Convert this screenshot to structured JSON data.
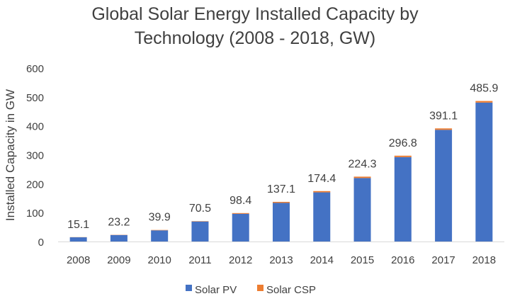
{
  "chart_data": {
    "type": "bar",
    "stacked": true,
    "title_lines": [
      "Global Solar Energy Installed Capacity by",
      "Technology (2008 - 2018, GW)"
    ],
    "xlabel": "",
    "ylabel": "Installed Capacity in GW",
    "ylim": [
      0,
      600
    ],
    "yticks": [
      0,
      100,
      200,
      300,
      400,
      500,
      600
    ],
    "categories": [
      "2008",
      "2009",
      "2010",
      "2011",
      "2012",
      "2013",
      "2014",
      "2015",
      "2016",
      "2017",
      "2018"
    ],
    "series": [
      {
        "name": "Solar PV",
        "color": "#4472C4",
        "values": [
          14.6,
          22.5,
          38.6,
          69.3,
          95.8,
          133.6,
          170.0,
          219.5,
          291.9,
          386.1,
          480.4
        ]
      },
      {
        "name": "Solar CSP",
        "color": "#ED7D31",
        "values": [
          0.5,
          0.7,
          1.3,
          1.2,
          2.6,
          3.5,
          4.4,
          4.8,
          4.9,
          5.0,
          5.5
        ]
      }
    ],
    "totals": [
      "15.1",
      "23.2",
      "39.9",
      "70.5",
      "98.4",
      "137.1",
      "174.4",
      "224.3",
      "296.8",
      "391.1",
      "485.9"
    ],
    "legend_position": "bottom",
    "grid": false
  }
}
